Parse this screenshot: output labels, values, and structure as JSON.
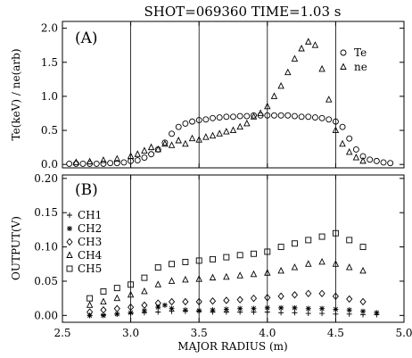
{
  "title": "SHOT=069360 TIME=1.03 s",
  "xlabel": "MAJOR RADIUS (m)",
  "chart_data": [
    {
      "type": "scatter",
      "panel_label": "(A)",
      "ylabel": "Te(keV) / ne(arb)",
      "xlim": [
        2.5,
        5.0
      ],
      "ylim": [
        -0.05,
        2.1
      ],
      "xticks": [
        2.5,
        3.0,
        3.5,
        4.0,
        4.5,
        5.0
      ],
      "yticks": [
        0.0,
        0.5,
        1.0,
        1.5,
        2.0
      ],
      "ytick_labels": [
        "0.0",
        "0.5",
        "1.0",
        "1.5",
        "2.0"
      ],
      "vlines": [
        3.0,
        3.5,
        4.0,
        4.5
      ],
      "legend_position": "top-right",
      "series": [
        {
          "name": "Te",
          "marker": "circle",
          "x": [
            2.55,
            2.6,
            2.65,
            2.7,
            2.75,
            2.8,
            2.85,
            2.9,
            2.95,
            3.0,
            3.05,
            3.1,
            3.15,
            3.2,
            3.25,
            3.3,
            3.35,
            3.4,
            3.45,
            3.5,
            3.55,
            3.6,
            3.65,
            3.7,
            3.75,
            3.8,
            3.85,
            3.9,
            3.95,
            4.0,
            4.05,
            4.1,
            4.15,
            4.2,
            4.25,
            4.3,
            4.35,
            4.4,
            4.45,
            4.5,
            4.55,
            4.6,
            4.65,
            4.7,
            4.75,
            4.8,
            4.85,
            4.9
          ],
          "y": [
            0.01,
            0.01,
            0.01,
            0.01,
            0.01,
            0.01,
            0.02,
            0.02,
            0.03,
            0.05,
            0.06,
            0.1,
            0.15,
            0.22,
            0.32,
            0.45,
            0.55,
            0.6,
            0.63,
            0.65,
            0.66,
            0.68,
            0.69,
            0.7,
            0.7,
            0.71,
            0.71,
            0.72,
            0.72,
            0.72,
            0.72,
            0.72,
            0.72,
            0.71,
            0.7,
            0.7,
            0.69,
            0.68,
            0.66,
            0.63,
            0.55,
            0.38,
            0.22,
            0.12,
            0.07,
            0.05,
            0.03,
            0.02
          ]
        },
        {
          "name": "ne",
          "marker": "triangle",
          "x": [
            2.6,
            2.7,
            2.8,
            2.9,
            3.0,
            3.05,
            3.1,
            3.15,
            3.2,
            3.25,
            3.3,
            3.35,
            3.4,
            3.45,
            3.5,
            3.55,
            3.6,
            3.65,
            3.7,
            3.75,
            3.8,
            3.85,
            3.9,
            3.95,
            4.0,
            4.05,
            4.1,
            4.15,
            4.2,
            4.25,
            4.3,
            4.35,
            4.4,
            4.45,
            4.5,
            4.55,
            4.6,
            4.65,
            4.7
          ],
          "y": [
            0.03,
            0.04,
            0.06,
            0.08,
            0.12,
            0.15,
            0.2,
            0.25,
            0.22,
            0.3,
            0.28,
            0.35,
            0.3,
            0.38,
            0.36,
            0.4,
            0.42,
            0.45,
            0.48,
            0.5,
            0.55,
            0.6,
            0.7,
            0.75,
            0.85,
            1.0,
            1.15,
            1.35,
            1.55,
            1.7,
            1.8,
            1.75,
            1.4,
            0.95,
            0.5,
            0.3,
            0.18,
            0.1,
            0.05
          ]
        }
      ]
    },
    {
      "type": "scatter",
      "panel_label": "(B)",
      "ylabel": "OUTPUT(V)",
      "xlim": [
        2.5,
        5.0
      ],
      "ylim": [
        -0.01,
        0.205
      ],
      "xticks": [
        2.5,
        3.0,
        3.5,
        4.0,
        4.5,
        5.0
      ],
      "xtick_labels": [
        "2.5",
        "3.0",
        "3.5",
        "4.0",
        "4.5",
        "5.0"
      ],
      "yticks": [
        0.0,
        0.05,
        0.1,
        0.15,
        0.2
      ],
      "ytick_labels": [
        "0.00",
        "0.05",
        "0.10",
        "0.15",
        "0.20"
      ],
      "vlines": [
        3.0,
        3.5,
        4.0,
        4.5
      ],
      "legend_position": "left",
      "series": [
        {
          "name": "CH1",
          "marker": "plus",
          "x": [
            2.7,
            2.8,
            2.9,
            3.0,
            3.1,
            3.2,
            3.3,
            3.4,
            3.5,
            3.6,
            3.7,
            3.8,
            3.9,
            4.0,
            4.1,
            4.2,
            4.3,
            4.4,
            4.5,
            4.6,
            4.7,
            4.8
          ],
          "y": [
            0.0,
            0.001,
            0.002,
            0.003,
            0.004,
            0.005,
            0.006,
            0.006,
            0.006,
            0.005,
            0.005,
            0.005,
            0.005,
            0.005,
            0.004,
            0.004,
            0.003,
            0.003,
            0.002,
            0.002,
            0.001,
            0.001
          ]
        },
        {
          "name": "CH2",
          "marker": "star",
          "x": [
            2.7,
            2.8,
            2.9,
            3.0,
            3.1,
            3.2,
            3.25,
            3.3,
            3.4,
            3.5,
            3.6,
            3.7,
            3.8,
            3.9,
            4.0,
            4.1,
            4.2,
            4.3,
            4.4,
            4.5,
            4.6,
            4.7,
            4.8
          ],
          "y": [
            0.0,
            0.0,
            0.002,
            0.004,
            0.007,
            0.012,
            0.015,
            0.01,
            0.008,
            0.007,
            0.008,
            0.009,
            0.01,
            0.01,
            0.011,
            0.011,
            0.011,
            0.01,
            0.01,
            0.009,
            0.008,
            0.006,
            0.004
          ]
        },
        {
          "name": "CH3",
          "marker": "diamond",
          "x": [
            2.7,
            2.8,
            2.9,
            3.0,
            3.1,
            3.2,
            3.3,
            3.4,
            3.5,
            3.6,
            3.7,
            3.8,
            3.9,
            4.0,
            4.1,
            4.2,
            4.3,
            4.4,
            4.5,
            4.6,
            4.7
          ],
          "y": [
            0.005,
            0.008,
            0.01,
            0.012,
            0.015,
            0.018,
            0.02,
            0.02,
            0.02,
            0.021,
            0.022,
            0.023,
            0.025,
            0.026,
            0.028,
            0.03,
            0.032,
            0.032,
            0.028,
            0.024,
            0.02
          ]
        },
        {
          "name": "CH4",
          "marker": "triangle",
          "x": [
            2.7,
            2.8,
            2.9,
            3.0,
            3.1,
            3.2,
            3.3,
            3.4,
            3.5,
            3.6,
            3.7,
            3.8,
            3.9,
            4.0,
            4.1,
            4.2,
            4.3,
            4.4,
            4.5,
            4.6,
            4.7
          ],
          "y": [
            0.015,
            0.02,
            0.025,
            0.03,
            0.035,
            0.045,
            0.05,
            0.052,
            0.053,
            0.055,
            0.056,
            0.058,
            0.06,
            0.062,
            0.065,
            0.07,
            0.075,
            0.078,
            0.075,
            0.07,
            0.065
          ]
        },
        {
          "name": "CH5",
          "marker": "square",
          "x": [
            2.7,
            2.8,
            2.9,
            3.0,
            3.1,
            3.2,
            3.3,
            3.4,
            3.5,
            3.6,
            3.7,
            3.8,
            3.9,
            4.0,
            4.1,
            4.2,
            4.3,
            4.4,
            4.5,
            4.6,
            4.7
          ],
          "y": [
            0.025,
            0.035,
            0.04,
            0.045,
            0.055,
            0.07,
            0.075,
            0.078,
            0.08,
            0.082,
            0.085,
            0.088,
            0.09,
            0.093,
            0.1,
            0.105,
            0.11,
            0.115,
            0.12,
            0.11,
            0.1
          ]
        }
      ]
    }
  ]
}
